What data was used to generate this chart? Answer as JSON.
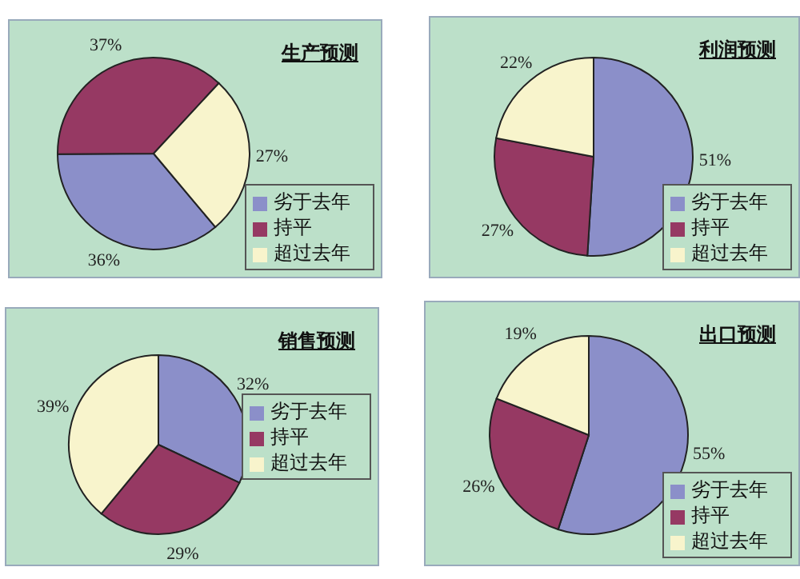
{
  "chart_data": [
    {
      "type": "pie",
      "title": "生产预测",
      "categories": [
        "劣于去年",
        "持平",
        "超过去年"
      ],
      "values": [
        36,
        37,
        27
      ],
      "colors": [
        "#8b8fc9",
        "#963963",
        "#f8f4cc"
      ],
      "value_labels": [
        "36%",
        "37%",
        "27%"
      ],
      "legend": "bottom right"
    },
    {
      "type": "pie",
      "title": "利润预测",
      "categories": [
        "劣于去年",
        "持平",
        "超过去年"
      ],
      "values": [
        51,
        27,
        22
      ],
      "colors": [
        "#8b8fc9",
        "#963963",
        "#f8f4cc"
      ],
      "value_labels": [
        "51%",
        "27%",
        "22%"
      ],
      "legend": "bottom right"
    },
    {
      "type": "pie",
      "title": "销售预测",
      "categories": [
        "劣于去年",
        "持平",
        "超过去年"
      ],
      "values": [
        32,
        29,
        39
      ],
      "colors": [
        "#8b8fc9",
        "#963963",
        "#f8f4cc"
      ],
      "value_labels": [
        "32%",
        "29%",
        "39%"
      ],
      "legend": "right"
    },
    {
      "type": "pie",
      "title": "出口预测",
      "categories": [
        "劣于去年",
        "持平",
        "超过去年"
      ],
      "values": [
        55,
        26,
        19
      ],
      "colors": [
        "#8b8fc9",
        "#963963",
        "#f8f4cc"
      ],
      "value_labels": [
        "55%",
        "26%",
        "19%"
      ],
      "legend": "bottom right"
    }
  ]
}
